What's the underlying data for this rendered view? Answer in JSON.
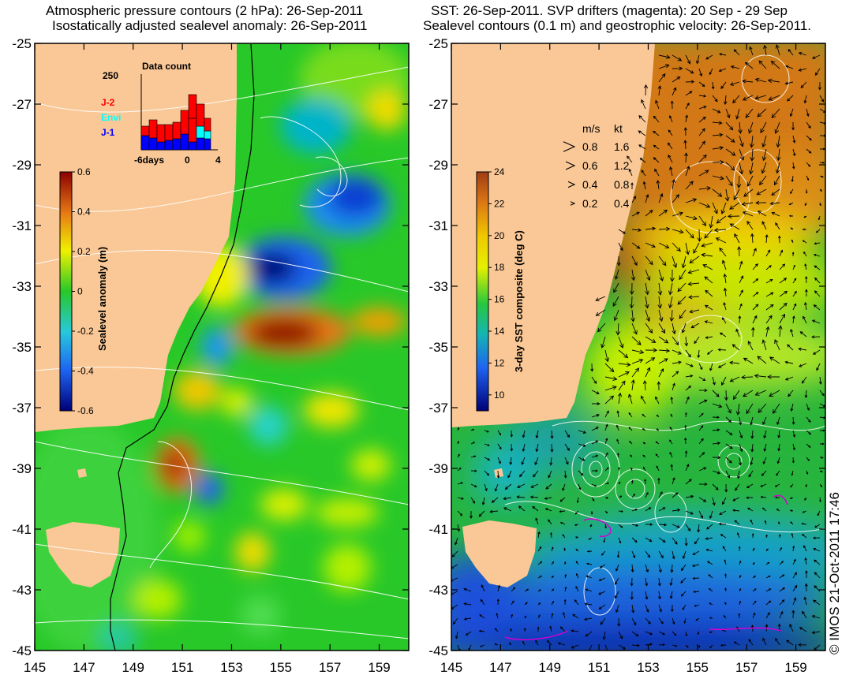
{
  "left_panel": {
    "title_line1": "Atmospheric pressure contours (2 hPa): 26-Sep-2011",
    "title_line2": "Isostatically adjusted sealevel anomaly: 26-Sep-2011",
    "colorbar": {
      "label": "Sealevel anomaly (m)",
      "ticks": [
        "0.6",
        "0.4",
        "0.2",
        "0",
        "-0.2",
        "-0.4",
        "-0.6"
      ],
      "range": [
        -0.6,
        0.6
      ]
    },
    "data_count": {
      "title": "Data count",
      "ymax_label": "250",
      "x_labels": [
        "-6days",
        "0",
        "4"
      ],
      "legend": [
        {
          "name": "J-2",
          "color": "#ff0000"
        },
        {
          "name": "Envi",
          "color": "#00ffff"
        },
        {
          "name": "J-1",
          "color": "#0000ff"
        }
      ]
    }
  },
  "right_panel": {
    "title_line1": "SST: 26-Sep-2011. SVP drifters (magenta): 20 Sep - 29 Sep",
    "title_line2": "Sealevel contours (0.1 m) and geostrophic velocity: 26-Sep-2011.",
    "colorbar": {
      "label": "3-day SST composite (deg C)",
      "ticks": [
        "24",
        "22",
        "20",
        "18",
        "16",
        "14",
        "12",
        "10"
      ],
      "range": [
        9,
        24
      ]
    },
    "velocity_legend": {
      "header_ms": "m/s",
      "header_kt": "kt",
      "rows": [
        {
          "ms": "0.8",
          "kt": "1.6"
        },
        {
          "ms": "0.6",
          "kt": "1.2"
        },
        {
          "ms": "0.4",
          "kt": "0.8"
        },
        {
          "ms": "0.2",
          "kt": "0.4"
        }
      ]
    }
  },
  "axes": {
    "y_ticks": [
      "-25",
      "-27",
      "-29",
      "-31",
      "-33",
      "-35",
      "-37",
      "-39",
      "-41",
      "-43",
      "-45"
    ],
    "x_ticks": [
      "145",
      "147",
      "149",
      "151",
      "153",
      "155",
      "157",
      "159"
    ]
  },
  "copyright": "© IMOS 21-Oct-2011 17:46",
  "colors": {
    "land": "#fac896",
    "anomaly_zero": "#28c828",
    "sst_warm": "#d27814",
    "sst_cold": "#1e3cc8"
  }
}
